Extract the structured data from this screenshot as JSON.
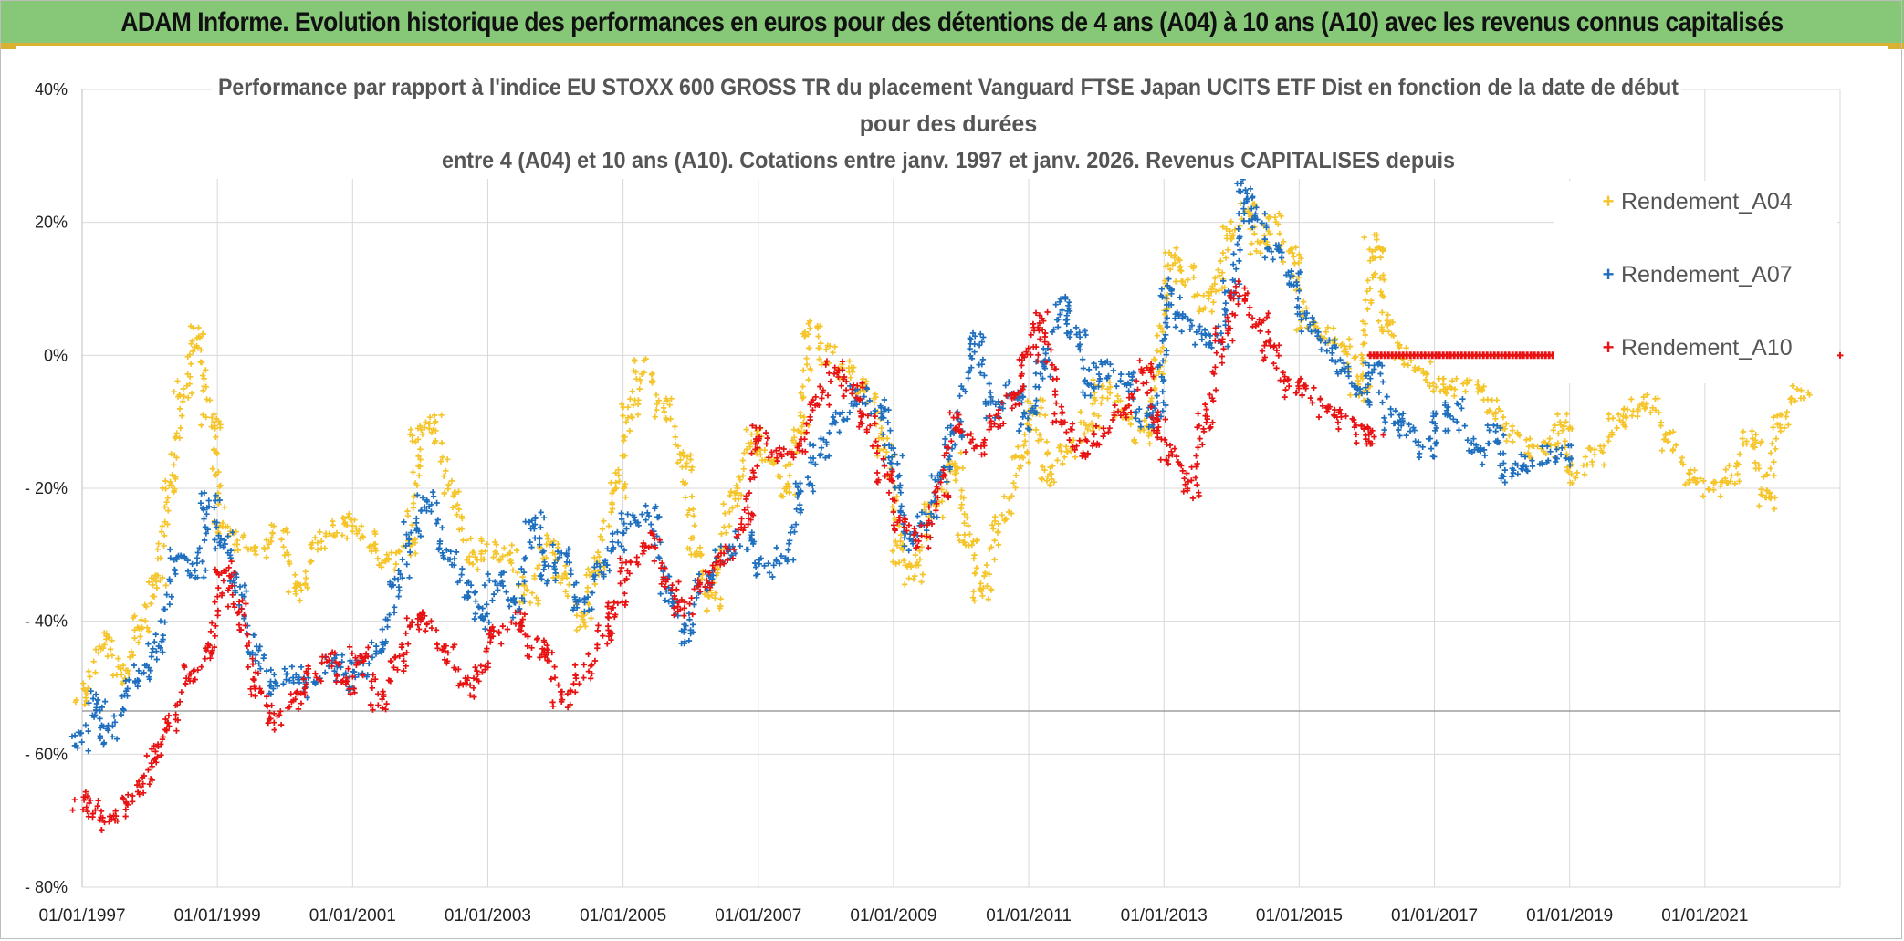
{
  "header": {
    "title": "ADAM Informe. Evolution historique des performances en euros pour des détentions de 4 ans (A04) à 10 ans (A10) avec les revenus connus capitalisés"
  },
  "chart_data": {
    "type": "scatter",
    "title_lines": [
      "Performance par rapport à l'indice EU STOXX 600 GROSS TR  du placement Vanguard FTSE Japan UCITS ETF Dist en fonction de la date de début",
      "pour des durées",
      "entre 4 (A04) et 10 ans (A10). Cotations entre janv. 1997 et janv. 2026. Revenus CAPITALISES depuis"
    ],
    "xlabel": "",
    "ylabel": "",
    "xlim": [
      1997.0,
      2023.0
    ],
    "ylim": [
      -80,
      40
    ],
    "x_ticks": [
      1997,
      1999,
      2001,
      2003,
      2005,
      2007,
      2009,
      2011,
      2013,
      2015,
      2017,
      2019,
      2021
    ],
    "x_tick_labels": [
      "01/01/1997",
      "01/01/1999",
      "01/01/2001",
      "01/01/2003",
      "01/01/2005",
      "01/01/2007",
      "01/01/2009",
      "01/01/2011",
      "01/01/2013",
      "01/01/2015",
      "01/01/2017",
      "01/01/2019",
      "01/01/2021"
    ],
    "y_ticks": [
      40,
      20,
      0,
      -20,
      -40,
      -60,
      -80
    ],
    "y_tick_labels": [
      "40%",
      "20%",
      "0%",
      "- 20%",
      "- 40%",
      "- 60%",
      "- 80%"
    ],
    "reference_line": -53.5,
    "grid": true,
    "legend_position": "top-right",
    "series": [
      {
        "name": "Rendement_A04",
        "color": "#f5c52b",
        "x": [
          1997.0,
          1997.3,
          1997.6,
          1997.9,
          1998.1,
          1998.3,
          1998.5,
          1998.7,
          1998.9,
          1999.1,
          1999.3,
          1999.6,
          1999.9,
          2000.2,
          2000.5,
          2000.8,
          2001.0,
          2001.2,
          2001.5,
          2001.8,
          2002.0,
          2002.2,
          2002.5,
          2002.8,
          2003.0,
          2003.3,
          2003.6,
          2003.9,
          2004.1,
          2004.4,
          2004.6,
          2004.9,
          2005.1,
          2005.3,
          2005.6,
          2005.9,
          2006.1,
          2006.3,
          2006.6,
          2006.9,
          2007.1,
          2007.4,
          2007.6,
          2007.8,
          2008.0,
          2008.3,
          2008.6,
          2008.9,
          2009.1,
          2009.3,
          2009.6,
          2009.9,
          2010.1,
          2010.3,
          2010.6,
          2010.9,
          2011.1,
          2011.3,
          2011.6,
          2011.9,
          2012.1,
          2012.4,
          2012.7,
          2012.9,
          2013.1,
          2013.3,
          2013.6,
          2013.8,
          2014.0,
          2014.2,
          2014.4,
          2014.6,
          2014.9,
          2015.1,
          2015.4,
          2015.7,
          2015.9,
          2016.1,
          2016.3,
          2016.5,
          2016.8,
          2017.0,
          2017.3,
          2017.6,
          2017.9,
          2018.1,
          2018.4,
          2018.7,
          2018.9,
          2019.1,
          2019.4,
          2019.7,
          2019.9,
          2020.2,
          2020.5,
          2020.8,
          2021.1,
          2021.4,
          2021.7,
          2021.9,
          2022.1,
          2022.4
        ],
        "y": [
          -51,
          -43,
          -48,
          -40,
          -34,
          -20,
          -5,
          3,
          -10,
          -26,
          -28,
          -29,
          -27,
          -36,
          -28,
          -26,
          -25,
          -28,
          -31,
          -29,
          -12,
          -10,
          -22,
          -31,
          -29,
          -30,
          -36,
          -28,
          -33,
          -40,
          -32,
          -20,
          -8,
          -2,
          -8,
          -16,
          -30,
          -37,
          -22,
          -12,
          -15,
          -20,
          -12,
          4,
          0,
          -2,
          -5,
          -14,
          -30,
          -33,
          -23,
          -16,
          -27,
          -36,
          -25,
          -15,
          -8,
          -18,
          -14,
          -10,
          -5,
          -8,
          -12,
          -2,
          15,
          12,
          8,
          11,
          19,
          22,
          16,
          20,
          15,
          5,
          3,
          1,
          -6,
          17,
          5,
          0,
          -2,
          -5,
          -5,
          -4,
          -8,
          -12,
          -14,
          -14,
          -10,
          -18,
          -15,
          -10,
          -8,
          -7,
          -13,
          -18,
          -20,
          -18,
          -12,
          -22,
          -10,
          -5
        ]
      },
      {
        "name": "Rendement_A07",
        "color": "#1f6fbf",
        "x": [
          1997.0,
          1997.2,
          1997.4,
          1997.7,
          1997.9,
          1998.1,
          1998.4,
          1998.7,
          1998.9,
          1999.1,
          1999.3,
          1999.6,
          1999.9,
          2000.1,
          2000.4,
          2000.7,
          2000.9,
          2001.1,
          2001.4,
          2001.7,
          2001.9,
          2002.1,
          2002.4,
          2002.7,
          2002.9,
          2003.1,
          2003.4,
          2003.7,
          2003.9,
          2004.1,
          2004.4,
          2004.7,
          2004.9,
          2005.1,
          2005.4,
          2005.7,
          2005.9,
          2006.2,
          2006.5,
          2006.8,
          2007.1,
          2007.4,
          2007.7,
          2007.9,
          2008.2,
          2008.5,
          2008.8,
          2009.0,
          2009.2,
          2009.5,
          2009.7,
          2009.9,
          2010.2,
          2010.5,
          2010.8,
          2011.0,
          2011.2,
          2011.5,
          2011.7,
          2011.9,
          2012.1,
          2012.4,
          2012.7,
          2012.9,
          2013.1,
          2013.3,
          2013.6,
          2013.8,
          2014.0,
          2014.2,
          2014.4,
          2014.6,
          2014.9,
          2015.1,
          2015.4,
          2015.6,
          2015.9,
          2016.1,
          2016.4,
          2016.6,
          2016.9,
          2017.1,
          2017.3,
          2017.6,
          2017.9,
          2018.1,
          2018.4,
          2018.7,
          2018.9
        ],
        "y": [
          -58,
          -52,
          -57,
          -50,
          -48,
          -44,
          -30,
          -32,
          -22,
          -28,
          -35,
          -45,
          -50,
          -48,
          -50,
          -46,
          -49,
          -47,
          -44,
          -34,
          -26,
          -22,
          -30,
          -35,
          -40,
          -34,
          -38,
          -25,
          -33,
          -30,
          -38,
          -32,
          -28,
          -25,
          -24,
          -36,
          -42,
          -34,
          -30,
          -28,
          -32,
          -30,
          -20,
          -14,
          -10,
          -6,
          -8,
          -15,
          -28,
          -25,
          -18,
          -12,
          2,
          -8,
          -5,
          -10,
          -2,
          8,
          4,
          -5,
          -2,
          -4,
          -10,
          -8,
          10,
          5,
          3,
          2,
          10,
          25,
          20,
          16,
          12,
          5,
          2,
          -2,
          -6,
          -2,
          -10,
          -11,
          -14,
          -10,
          -8,
          -15,
          -12,
          -18,
          -16,
          -15,
          -15
        ]
      },
      {
        "name": "Rendement_A10",
        "color": "#e81212",
        "x": [
          1997.0,
          1997.2,
          1997.4,
          1997.6,
          1997.9,
          1998.1,
          1998.3,
          1998.6,
          1998.9,
          1999.1,
          1999.3,
          1999.6,
          1999.9,
          2000.2,
          2000.4,
          2000.7,
          2000.9,
          2001.1,
          2001.4,
          2001.7,
          2001.9,
          2002.1,
          2002.4,
          2002.7,
          2002.9,
          2003.1,
          2003.4,
          2003.7,
          2003.9,
          2004.1,
          2004.4,
          2004.7,
          2004.9,
          2005.1,
          2005.4,
          2005.7,
          2005.9,
          2006.2,
          2006.5,
          2006.8,
          2007.0,
          2007.3,
          2007.6,
          2007.9,
          2008.1,
          2008.4,
          2008.6,
          2008.9,
          2009.1,
          2009.4,
          2009.7,
          2009.9,
          2010.2,
          2010.5,
          2010.8,
          2011.0,
          2011.2,
          2011.5,
          2011.8,
          2012.1,
          2012.4,
          2012.7,
          2012.9,
          2013.1,
          2013.4,
          2013.6,
          2013.9,
          2014.1,
          2014.4,
          2014.6,
          2014.9,
          2015.1,
          2015.4,
          2015.7,
          2015.9,
          2016.1
        ],
        "y": [
          -67,
          -68,
          -70,
          -68,
          -65,
          -60,
          -55,
          -48,
          -44,
          -32,
          -38,
          -50,
          -55,
          -52,
          -48,
          -46,
          -50,
          -45,
          -52,
          -46,
          -40,
          -40,
          -45,
          -50,
          -48,
          -42,
          -40,
          -44,
          -45,
          -52,
          -48,
          -42,
          -38,
          -32,
          -28,
          -35,
          -38,
          -34,
          -30,
          -25,
          -12,
          -15,
          -14,
          -6,
          -2,
          -5,
          -10,
          -18,
          -25,
          -28,
          -20,
          -10,
          -14,
          -10,
          -6,
          0,
          5,
          -10,
          -14,
          -12,
          -8,
          -2,
          -10,
          -15,
          -20,
          -10,
          3,
          10,
          5,
          0,
          -5,
          -5,
          -8,
          -10,
          -12,
          -12
        ]
      }
    ]
  }
}
